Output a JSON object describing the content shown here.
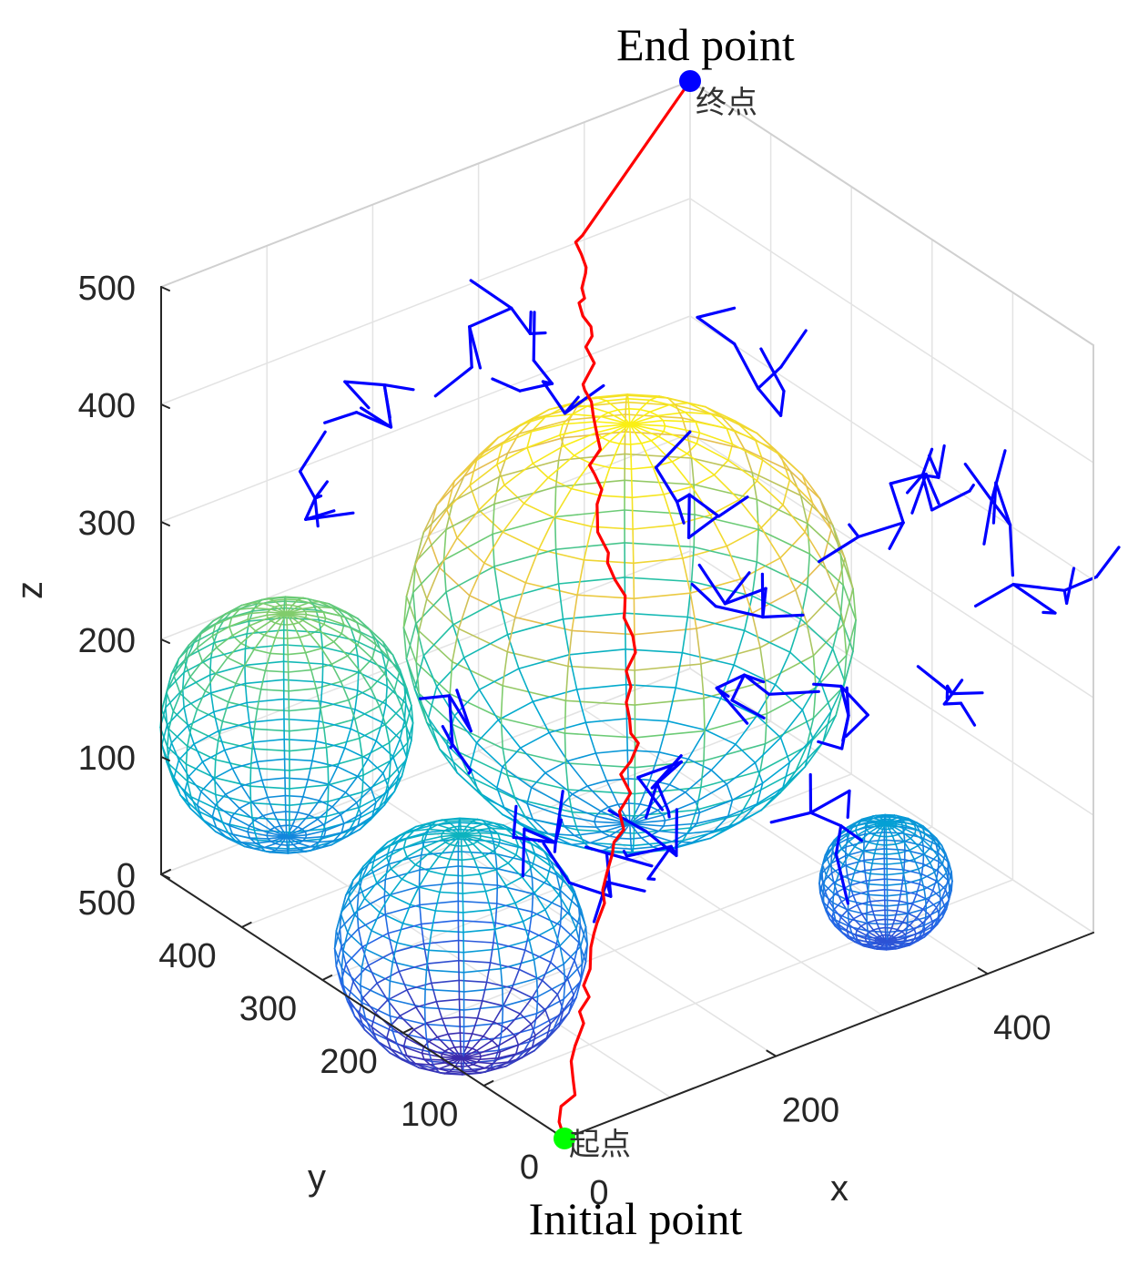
{
  "chart_data": {
    "type": "3d-scatter-line",
    "title": "",
    "xlabel": "x",
    "ylabel": "y",
    "zlabel": "z",
    "xlim": [
      0,
      500
    ],
    "ylim": [
      0,
      500
    ],
    "zlim": [
      0,
      500
    ],
    "x_ticks": [
      "0",
      "200",
      "400"
    ],
    "y_ticks": [
      "0",
      "100",
      "200",
      "300",
      "400",
      "500"
    ],
    "z_ticks": [
      "0",
      "100",
      "200",
      "300",
      "400",
      "500"
    ],
    "grid": true,
    "obstacles": [
      {
        "shape": "sphere",
        "center": [
          260,
          260,
          230
        ],
        "radius": 170
      },
      {
        "shape": "sphere",
        "center": [
          50,
          410,
          150
        ],
        "radius": 95
      },
      {
        "shape": "sphere",
        "center": [
          70,
          220,
          40
        ],
        "radius": 95
      },
      {
        "shape": "sphere",
        "center": [
          380,
          100,
          40
        ],
        "radius": 50
      }
    ],
    "series": [
      {
        "role": "path",
        "color": "#ff0000",
        "points": [
          [
            0,
            0,
            0
          ],
          [
            60,
            60,
            60
          ],
          [
            120,
            110,
            120
          ],
          [
            200,
            180,
            170
          ],
          [
            240,
            230,
            240
          ],
          [
            260,
            300,
            300
          ],
          [
            300,
            360,
            360
          ],
          [
            330,
            410,
            400
          ],
          [
            360,
            450,
            440
          ],
          [
            500,
            500,
            500
          ]
        ]
      },
      {
        "role": "tree",
        "color": "#0000ff",
        "segments": 170
      }
    ],
    "start_point": {
      "label": "起点",
      "coords": [
        0,
        0,
        0
      ],
      "color": "#00ff00"
    },
    "end_point": {
      "label": "终点",
      "coords": [
        500,
        500,
        500
      ],
      "color": "#0000ff"
    }
  },
  "captions": {
    "top": "End point",
    "bottom": "Initial point"
  }
}
